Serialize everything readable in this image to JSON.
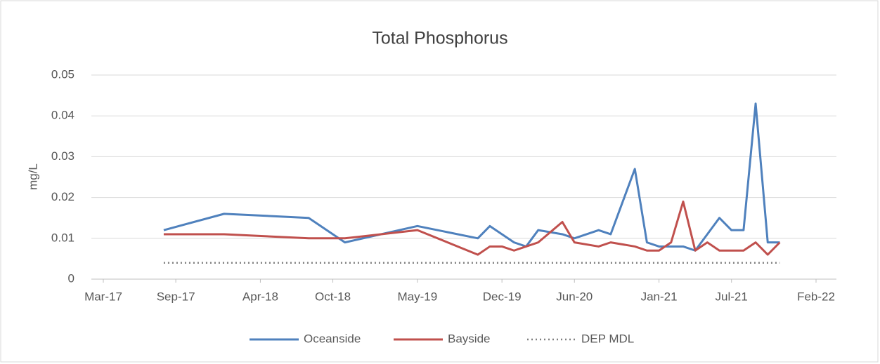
{
  "chart_data": {
    "type": "line",
    "title": "Total Phosphorus",
    "ylabel": "mg/L",
    "x": [
      "2017-08",
      "2018-01",
      "2018-08",
      "2018-11",
      "2019-05",
      "2019-10",
      "2019-11",
      "2019-12",
      "2020-01",
      "2020-02",
      "2020-03",
      "2020-05",
      "2020-06",
      "2020-08",
      "2020-09",
      "2020-11",
      "2020-12",
      "2021-01",
      "2021-02",
      "2021-03",
      "2021-04",
      "2021-05",
      "2021-06",
      "2021-07",
      "2021-08",
      "2021-09",
      "2021-10",
      "2021-11"
    ],
    "series": [
      {
        "name": "Oceanside",
        "color": "#4f81bd",
        "style": "solid",
        "values": [
          0.012,
          0.016,
          0.015,
          0.009,
          0.013,
          0.01,
          0.013,
          0.011,
          0.009,
          0.008,
          0.012,
          0.011,
          0.01,
          0.012,
          0.011,
          0.027,
          0.009,
          0.008,
          0.008,
          0.008,
          0.007,
          0.011,
          0.015,
          0.012,
          0.012,
          0.043,
          0.009,
          0.009
        ]
      },
      {
        "name": "Bayside",
        "color": "#c0504d",
        "style": "solid",
        "values": [
          0.011,
          0.011,
          0.01,
          0.01,
          0.012,
          0.006,
          0.008,
          0.008,
          0.007,
          0.008,
          0.009,
          0.014,
          0.009,
          0.008,
          0.009,
          0.008,
          0.007,
          0.007,
          0.009,
          0.019,
          0.007,
          0.009,
          0.007,
          0.007,
          0.007,
          0.009,
          0.006,
          0.009
        ]
      },
      {
        "name": "DEP MDL",
        "color": "#7f7f7f",
        "style": "dotted",
        "values": [
          0.004,
          0.004,
          0.004,
          0.004,
          0.004,
          0.004,
          0.004,
          0.004,
          0.004,
          0.004,
          0.004,
          0.004,
          0.004,
          0.004,
          0.004,
          0.004,
          0.004,
          0.004,
          0.004,
          0.004,
          0.004,
          0.004,
          0.004,
          0.004,
          0.004,
          0.004,
          0.004,
          0.004
        ]
      }
    ],
    "xlim": [
      "2017-03",
      "2022-02"
    ],
    "xticks": [
      {
        "value": "2017-03",
        "label": "Mar-17"
      },
      {
        "value": "2017-09",
        "label": "Sep-17"
      },
      {
        "value": "2018-04",
        "label": "Apr-18"
      },
      {
        "value": "2018-10",
        "label": "Oct-18"
      },
      {
        "value": "2019-05",
        "label": "May-19"
      },
      {
        "value": "2019-12",
        "label": "Dec-19"
      },
      {
        "value": "2020-06",
        "label": "Jun-20"
      },
      {
        "value": "2021-01",
        "label": "Jan-21"
      },
      {
        "value": "2021-07",
        "label": "Jul-21"
      },
      {
        "value": "2022-02",
        "label": "Feb-22"
      }
    ],
    "ylim": [
      0,
      0.05
    ],
    "yticks": [
      0,
      0.01,
      0.02,
      0.03,
      0.04,
      0.05
    ],
    "grid": true,
    "legend": "bottom"
  }
}
